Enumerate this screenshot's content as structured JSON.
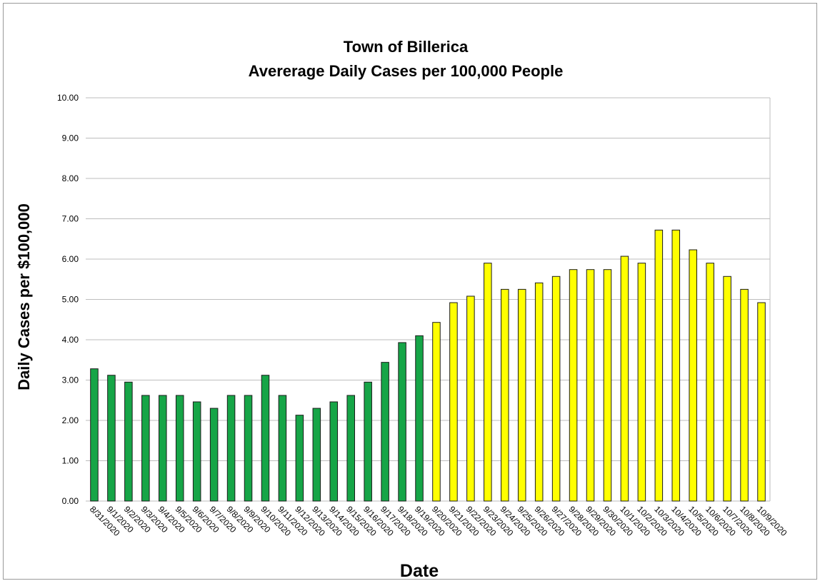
{
  "chart_data": {
    "type": "bar",
    "title": "Town of Billerica",
    "subtitle": "Avererage Daily Cases per 100,000 People",
    "xlabel": "Date",
    "ylabel": "Daily Cases per $100,000",
    "ylim": [
      0,
      10
    ],
    "ytick_labels": [
      "0.00",
      "1.00",
      "2.00",
      "3.00",
      "4.00",
      "5.00",
      "6.00",
      "7.00",
      "8.00",
      "9.00",
      "10.00"
    ],
    "grid": true,
    "legend": "none",
    "colors": {
      "before": "#16a547",
      "after": "#ffff00",
      "bar_border": "#1b1b1b",
      "grid": "#bdbdbd"
    },
    "color_split_index": 20,
    "categories": [
      "8/31/2020",
      "9/1/2020",
      "9/2/2020",
      "9/3/2020",
      "9/4/2020",
      "9/5/2020",
      "9/6/2020",
      "9/7/2020",
      "9/8/2020",
      "9/9/2020",
      "9/10/2020",
      "9/11/2020",
      "9/12/2020",
      "9/13/2020",
      "9/14/2020",
      "9/15/2020",
      "9/16/2020",
      "9/17/2020",
      "9/18/2020",
      "9/19/2020",
      "9/20/2020",
      "9/21/2020",
      "9/22/2020",
      "9/23/2020",
      "9/24/2020",
      "9/25/2020",
      "9/26/2020",
      "9/27/2020",
      "9/28/2020",
      "9/29/2020",
      "9/30/2020",
      "10/1/2020",
      "10/2/2020",
      "10/3/2020",
      "10/4/2020",
      "10/5/2020",
      "10/6/2020",
      "10/7/2020",
      "10/8/2020",
      "10/9/2020"
    ],
    "values": [
      3.28,
      3.12,
      2.95,
      2.62,
      2.62,
      2.62,
      2.46,
      2.3,
      2.62,
      2.62,
      3.12,
      2.62,
      2.13,
      2.3,
      2.46,
      2.62,
      2.95,
      3.44,
      3.93,
      4.1,
      4.43,
      4.92,
      5.08,
      5.9,
      5.25,
      5.25,
      5.41,
      5.57,
      5.74,
      5.74,
      5.74,
      6.07,
      5.9,
      6.72,
      6.72,
      6.23,
      5.9,
      5.57,
      5.25,
      4.92
    ]
  }
}
